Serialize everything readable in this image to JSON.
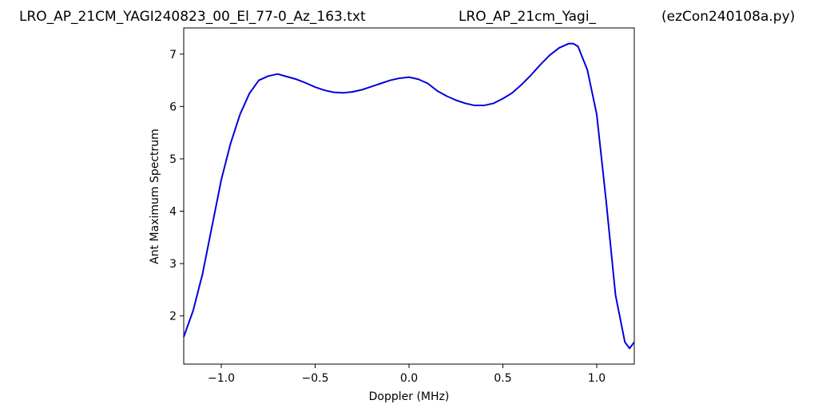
{
  "chart_data": {
    "type": "line",
    "title_left": "LRO_AP_21CM_YAGI240823_00_El_77-0_Az_163.txt",
    "title_center": "LRO_AP_21cm_Yagi_",
    "title_right": "(ezCon240108a.py)",
    "x_label": "Doppler (MHz)",
    "y_label": "Ant Maximum Spectrum",
    "x": [
      -1.2,
      -1.15,
      -1.1,
      -1.05,
      -1.0,
      -0.95,
      -0.9,
      -0.85,
      -0.8,
      -0.75,
      -0.7,
      -0.65,
      -0.6,
      -0.55,
      -0.5,
      -0.45,
      -0.4,
      -0.35,
      -0.3,
      -0.25,
      -0.2,
      -0.15,
      -0.1,
      -0.05,
      0.0,
      0.05,
      0.1,
      0.15,
      0.2,
      0.25,
      0.3,
      0.35,
      0.4,
      0.45,
      0.5,
      0.55,
      0.6,
      0.65,
      0.7,
      0.75,
      0.8,
      0.85,
      0.875,
      0.9,
      0.95,
      1.0,
      1.05,
      1.1,
      1.15,
      1.175,
      1.2
    ],
    "series": [
      {
        "color": "#0000dd",
        "values": [
          1.6,
          2.1,
          2.8,
          3.7,
          4.6,
          5.3,
          5.85,
          6.25,
          6.5,
          6.58,
          6.62,
          6.57,
          6.52,
          6.45,
          6.37,
          6.31,
          6.27,
          6.26,
          6.28,
          6.32,
          6.38,
          6.44,
          6.5,
          6.54,
          6.56,
          6.52,
          6.44,
          6.3,
          6.2,
          6.12,
          6.06,
          6.02,
          6.02,
          6.06,
          6.15,
          6.26,
          6.42,
          6.6,
          6.8,
          6.98,
          7.12,
          7.2,
          7.2,
          7.15,
          6.7,
          5.85,
          4.2,
          2.4,
          1.5,
          1.38,
          1.5
        ]
      }
    ],
    "xlim": [
      -1.2,
      1.2
    ],
    "ylim": [
      1.08,
      7.5
    ],
    "xticks": [
      {
        "value": -1.0,
        "label": "−1.0"
      },
      {
        "value": -0.5,
        "label": "−0.5"
      },
      {
        "value": 0.0,
        "label": "0.0"
      },
      {
        "value": 0.5,
        "label": "0.5"
      },
      {
        "value": 1.0,
        "label": "1.0"
      }
    ],
    "yticks": [
      2,
      3,
      4,
      5,
      6,
      7
    ]
  }
}
